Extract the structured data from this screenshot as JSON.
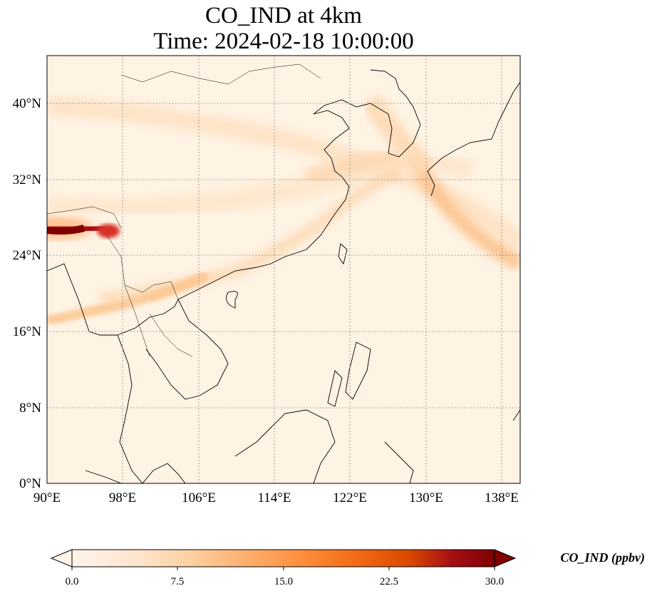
{
  "map": {
    "title_line1": "CO_IND at 4km",
    "title_line2": "Time: 2024-02-18 10:00:00",
    "extent": {
      "lon_min": 90,
      "lon_max": 140,
      "lat_min": 0,
      "lat_max": 45
    },
    "lon_ticks": [
      {
        "value": 90,
        "label": "90°E"
      },
      {
        "value": 98,
        "label": "98°E"
      },
      {
        "value": 106,
        "label": "106°E"
      },
      {
        "value": 114,
        "label": "114°E"
      },
      {
        "value": 122,
        "label": "122°E"
      },
      {
        "value": 130,
        "label": "130°E"
      },
      {
        "value": 138,
        "label": "138°E"
      }
    ],
    "lat_ticks": [
      {
        "value": 0,
        "label": "0°N"
      },
      {
        "value": 8,
        "label": "8°N"
      },
      {
        "value": 16,
        "label": "16°N"
      },
      {
        "value": 24,
        "label": "24°N"
      },
      {
        "value": 32,
        "label": "32°N"
      },
      {
        "value": 40,
        "label": "40°N"
      }
    ],
    "gridlines": "dotted"
  },
  "colorbar": {
    "label": "CO_IND (ppbv)",
    "min": 0.0,
    "max": 30.0,
    "extend": "both",
    "ticks": [
      {
        "value": 0,
        "label": "0.0"
      },
      {
        "value": 7.5,
        "label": "7.5"
      },
      {
        "value": 15,
        "label": "15.0"
      },
      {
        "value": 22.5,
        "label": "22.5"
      },
      {
        "value": 30,
        "label": "30.0"
      }
    ],
    "colors": [
      "#fff5eb",
      "#fee6ce",
      "#fdd0a2",
      "#fdae6b",
      "#fd8d3c",
      "#f16913",
      "#d94801",
      "#a50f15",
      "#7f0000"
    ]
  }
}
